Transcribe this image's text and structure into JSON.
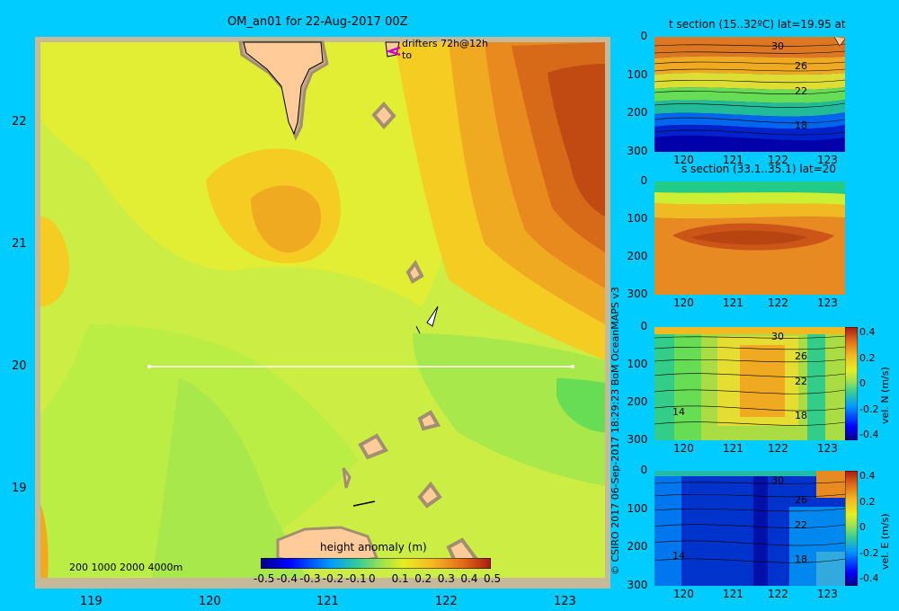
{
  "title": "OM_an01 for 22-Aug-2017 00Z",
  "map": {
    "lat_labels": [
      "22",
      "21",
      "20",
      "19"
    ],
    "lon_labels": [
      "119",
      "120",
      "121",
      "122",
      "123"
    ],
    "drifters_label": "drifters 72h@12h",
    "drifters_to": "to",
    "depth_legend": "200  1000  2000  4000m",
    "colorbar_title": "height anomaly  (m)",
    "colorbar_ticks": [
      "-0.5",
      "-0.4",
      "-0.3",
      "-0.2",
      "-0.1",
      "0",
      "0.1",
      "0.2",
      "0.3",
      "0.4",
      "0.5"
    ]
  },
  "credit": "© CSIRO 2017   06-Sep-2017 18:29:23 BoM OceanMAPS v3",
  "sections": [
    {
      "title": "t section (15..32ºC) lat=19.95 at",
      "contours": [
        "30",
        "26",
        "22",
        "18"
      ]
    },
    {
      "title": "s section (33.1..35.1) lat=20",
      "contours": []
    },
    {
      "title": "",
      "contours": [
        "30",
        "26",
        "22",
        "18",
        "14"
      ],
      "cb_label": "vel. N (m/s)"
    },
    {
      "title": "",
      "contours": [
        "30",
        "26",
        "22",
        "18",
        "14"
      ],
      "cb_label": "vel. E (m/s)"
    }
  ],
  "section_axes": {
    "depth_ticks": [
      "0",
      "100",
      "200",
      "300"
    ],
    "lon_ticks": [
      "120",
      "121",
      "122",
      "123"
    ]
  },
  "vel_colorbar_ticks": [
    "0.4",
    "0.2",
    "0",
    "-0.2",
    "-0.4"
  ]
}
